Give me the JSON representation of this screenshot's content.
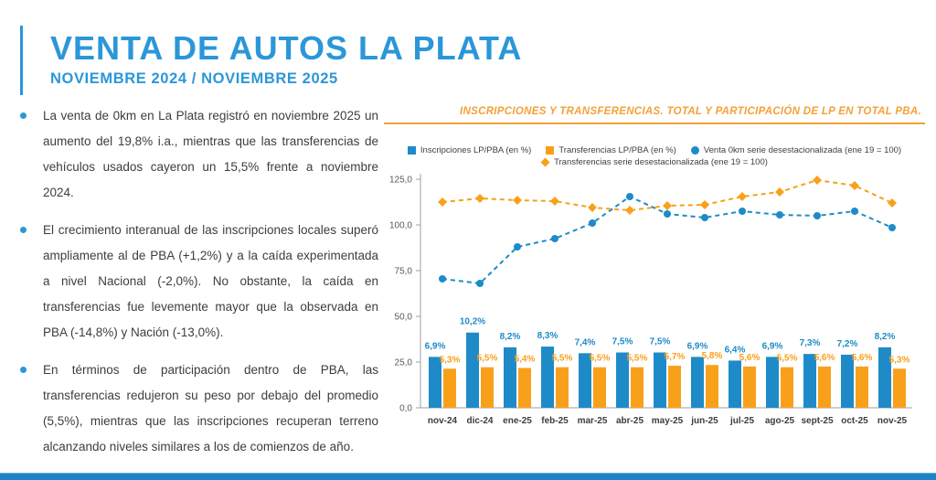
{
  "slide": {
    "title": "VENTA DE AUTOS LA PLATA",
    "subtitle": "NOVIEMBRE 2024 / NOVIEMBRE 2025",
    "bullets": [
      "La venta de 0km en La Plata registró en noviembre 2025 un aumento del 19,8% i.a., mientras que las transferencias de vehículos usados cayeron un 15,5% frente a noviembre 2024.",
      "El crecimiento interanual de las inscripciones locales superó ampliamente al de PBA (+1,2%) y a la caída experimentada a nivel Nacional (-2,0%). No obstante, la caída en transferencias fue levemente mayor que la observada en PBA (-14,8%) y Nación (-13,0%).",
      "En términos de participación dentro de PBA, las transferencias redujeron su peso por debajo del promedio (5,5%), mientras que las inscripciones recuperan terreno alcanzando niveles similares a los de comienzos de año."
    ],
    "colors": {
      "accent_blue": "#2B97D8",
      "accent_orange": "#F2A237",
      "text": "#3D3D3D",
      "bottom_bar": "#1E82C4"
    }
  },
  "chart": {
    "title": "INSCRIPCIONES Y TRANSFERENCIAS. TOTAL Y PARTICIPACIÓN DE LP EN TOTAL PBA."
  },
  "chart_data": {
    "type": "combo_bar_line",
    "title": "INSCRIPCIONES Y TRANSFERENCIAS. TOTAL Y PARTICIPACIÓN DE LP EN TOTAL PBA.",
    "categories": [
      "nov-24",
      "dic-24",
      "ene-25",
      "feb-25",
      "mar-25",
      "abr-25",
      "may-25",
      "jun-25",
      "jul-25",
      "ago-25",
      "sept-25",
      "oct-25",
      "nov-25"
    ],
    "series": [
      {
        "name": "Inscripciones LP/PBA (en %)",
        "type": "bar",
        "marker": "square",
        "color": "#1E8BC8",
        "axis": "secondary",
        "values": [
          6.9,
          10.2,
          8.2,
          8.3,
          7.4,
          7.5,
          7.5,
          6.9,
          6.4,
          6.9,
          7.3,
          7.2,
          8.2
        ],
        "labels": [
          "6,9%",
          "10,2%",
          "8,2%",
          "8,3%",
          "7,4%",
          "7,5%",
          "7,5%",
          "6,9%",
          "6,4%",
          "6,9%",
          "7,3%",
          "7,2%",
          "8,2%"
        ]
      },
      {
        "name": "Transferencias LP/PBA (en %)",
        "type": "bar",
        "marker": "square",
        "color": "#F9A01B",
        "axis": "secondary",
        "values": [
          5.3,
          5.5,
          5.4,
          5.5,
          5.5,
          5.5,
          5.7,
          5.8,
          5.6,
          5.5,
          5.6,
          5.6,
          5.3
        ],
        "labels": [
          "5,3%",
          "5,5%",
          "5,4%",
          "5,5%",
          "5,5%",
          "5,5%",
          "5,7%",
          "5,8%",
          "5,6%",
          "5,5%",
          "5,6%",
          "5,6%",
          "5,3%"
        ]
      },
      {
        "name": "Venta 0km serie desestacionalizada (ene 19 = 100)",
        "type": "line",
        "marker": "circle",
        "color": "#1E8BC8",
        "axis": "primary",
        "values": [
          70.5,
          68,
          88,
          92.5,
          101,
          115.5,
          106,
          104,
          107.5,
          105.5,
          105,
          107.5,
          98.5
        ]
      },
      {
        "name": "Transferencias serie desestacionalizada (ene 19 = 100)",
        "type": "line",
        "marker": "diamond",
        "color": "#F9A01B",
        "axis": "primary",
        "values": [
          112.5,
          114.5,
          113.5,
          113,
          109.5,
          108,
          110.5,
          111,
          115.5,
          118,
          124.5,
          121.5,
          112
        ]
      }
    ],
    "y_axis": {
      "min": 0,
      "max": 125,
      "step": 25,
      "tick_labels": [
        "0,0",
        "25,0",
        "50,0",
        "75,0",
        "100,0",
        "125,0"
      ]
    },
    "secondary_axis_visible": false,
    "secondary_axis_max_estimate": 31,
    "grid": false,
    "legend_position": "top",
    "legend_rows": [
      [
        0,
        1,
        2
      ],
      [
        3
      ]
    ]
  }
}
